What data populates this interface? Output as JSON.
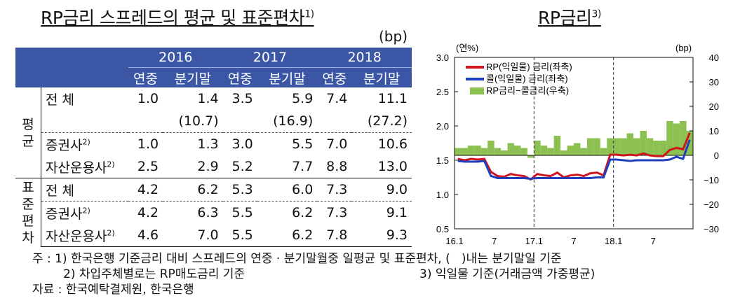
{
  "left": {
    "title": "RP금리 스프레드의 평균 및 표준편차",
    "title_note": "1)",
    "unit": "(bp)",
    "years": [
      "2016",
      "2017",
      "2018"
    ],
    "subheaders": [
      "연중",
      "분기말",
      "연중",
      "분기말",
      "연중",
      "분기말"
    ],
    "groups": [
      {
        "label": "평균",
        "rows": [
          {
            "label": "전 체",
            "note": "",
            "values": [
              "1.0",
              "1.4",
              "3.5",
              "5.9",
              "7.4",
              "11.1"
            ]
          },
          {
            "label": "",
            "note": "",
            "values": [
              "",
              "(10.7)",
              "",
              "(16.9)",
              "",
              "(27.2)"
            ]
          },
          {
            "label": "증권사",
            "note": "2)",
            "values": [
              "1.0",
              "1.3",
              "3.0",
              "5.5",
              "7.0",
              "10.6"
            ]
          },
          {
            "label": "자산운용사",
            "note": "2)",
            "values": [
              "2.5",
              "2.9",
              "5.2",
              "7.7",
              "8.8",
              "13.0"
            ]
          }
        ]
      },
      {
        "label": "표준편차",
        "rows": [
          {
            "label": "전 체",
            "note": "",
            "values": [
              "4.2",
              "6.2",
              "5.3",
              "6.0",
              "7.3",
              "9.0"
            ]
          },
          {
            "label": "증권사",
            "note": "2)",
            "values": [
              "4.2",
              "6.3",
              "5.5",
              "6.2",
              "7.3",
              "9.1"
            ]
          },
          {
            "label": "자산운용사",
            "note": "2)",
            "values": [
              "4.6",
              "7.0",
              "5.5",
              "6.2",
              "7.8",
              "9.3"
            ]
          }
        ]
      }
    ]
  },
  "chart_data": {
    "type": "line",
    "title": "RP금리",
    "title_note": "3)",
    "left_unit": "(연%)",
    "right_unit": "(bp)",
    "x_ticks": [
      "16.1",
      "7",
      "17.1",
      "7",
      "18.1",
      "7"
    ],
    "y_left": {
      "range": [
        0.5,
        3.0
      ],
      "ticks": [
        "3.0",
        "2.5",
        "2.0",
        "1.5",
        "1.0",
        "0.5"
      ]
    },
    "y_right": {
      "range": [
        -30,
        40
      ],
      "ticks": [
        "40",
        "30",
        "20",
        "10",
        "0",
        "−10",
        "−20",
        "−30"
      ]
    },
    "x_months": [
      "2016-01",
      "2016-02",
      "2016-03",
      "2016-04",
      "2016-05",
      "2016-06",
      "2016-07",
      "2016-08",
      "2016-09",
      "2016-10",
      "2016-11",
      "2016-12",
      "2017-01",
      "2017-02",
      "2017-03",
      "2017-04",
      "2017-05",
      "2017-06",
      "2017-07",
      "2017-08",
      "2017-09",
      "2017-10",
      "2017-11",
      "2017-12",
      "2018-01",
      "2018-02",
      "2018-03",
      "2018-04",
      "2018-05",
      "2018-06",
      "2018-07",
      "2018-08",
      "2018-09",
      "2018-10",
      "2018-11",
      "2018-12"
    ],
    "series": [
      {
        "name": "RP(익일물) 금리(좌축)",
        "color": "#d0141c",
        "values": [
          1.52,
          1.5,
          1.52,
          1.51,
          1.52,
          1.33,
          1.27,
          1.26,
          1.3,
          1.28,
          1.27,
          1.22,
          1.3,
          1.28,
          1.27,
          1.32,
          1.25,
          1.28,
          1.29,
          1.27,
          1.31,
          1.32,
          1.28,
          1.58,
          1.58,
          1.57,
          1.58,
          1.57,
          1.6,
          1.57,
          1.56,
          1.56,
          1.65,
          1.68,
          1.66,
          1.9
        ]
      },
      {
        "name": "콜(익일물) 금리(좌축)",
        "color": "#1f3fbf",
        "values": [
          1.49,
          1.48,
          1.48,
          1.48,
          1.49,
          1.27,
          1.24,
          1.24,
          1.24,
          1.24,
          1.24,
          1.23,
          1.24,
          1.24,
          1.24,
          1.24,
          1.24,
          1.24,
          1.24,
          1.24,
          1.24,
          1.25,
          1.25,
          1.51,
          1.51,
          1.5,
          1.49,
          1.5,
          1.5,
          1.5,
          1.5,
          1.5,
          1.51,
          1.55,
          1.52,
          1.8
        ]
      },
      {
        "name": "RP금리−콜금리(우축)",
        "color": "#8cc152",
        "type": "area",
        "values": [
          3,
          3,
          4,
          4,
          3,
          6,
          3,
          2,
          5,
          4,
          3,
          -1,
          6,
          4,
          3,
          8,
          2,
          4,
          5,
          3,
          7,
          7,
          3,
          7,
          7,
          7,
          9,
          7,
          10,
          7,
          6,
          6,
          14,
          13,
          14,
          10
        ]
      }
    ],
    "vlines": [
      "17.1",
      "18.1"
    ]
  },
  "notes": {
    "line1": "주 : 1) 한국은행 기준금리 대비 스프레드의 연중 · 분기말월중 일평균 및 표준편차, (   )내는 분기말일 기준",
    "line2a": "2) 차입주체별로는 RP매도금리 기준",
    "line2b": "3) 익일물 기준(거래금액 가중평균)",
    "line3": "자료 : 한국예탁결제원, 한국은행"
  }
}
